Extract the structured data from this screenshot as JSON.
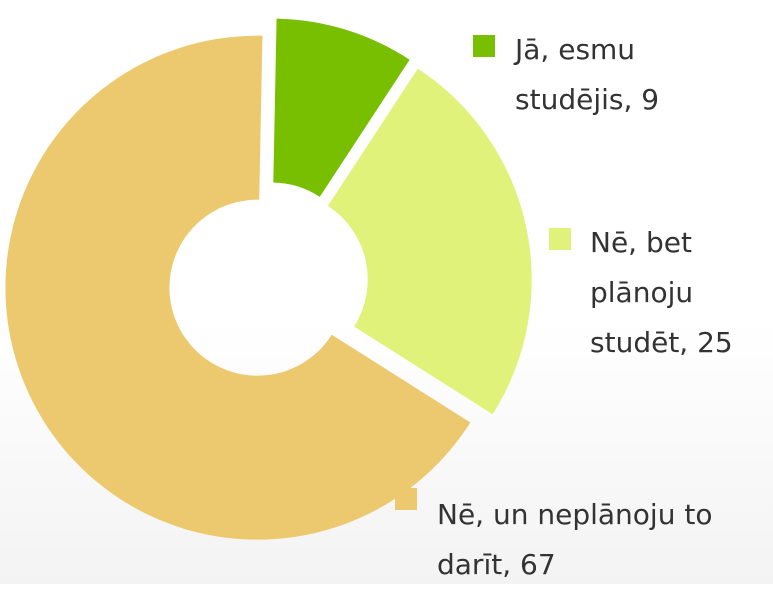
{
  "chart_data": {
    "type": "donut",
    "categories": [
      "Jā, esmu studējis",
      "Nē, bet plānoju studēt",
      "Nē, un neplānoju to darīt"
    ],
    "values": [
      9,
      25,
      67
    ],
    "colors": [
      "#77bf00",
      "#e0f27a",
      "#ecc96e"
    ]
  }
}
